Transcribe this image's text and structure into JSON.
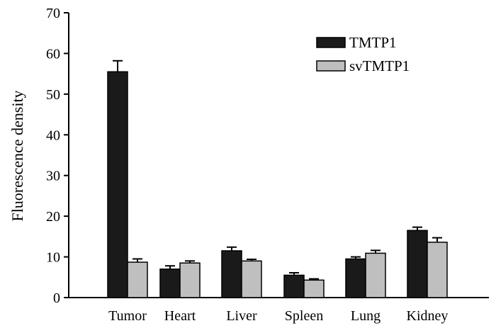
{
  "chart_data": {
    "type": "bar",
    "title": "",
    "xlabel": "",
    "ylabel": "Fluorescence density",
    "ylim": [
      0,
      70
    ],
    "yticks": [
      0,
      10,
      20,
      30,
      40,
      50,
      60,
      70
    ],
    "grid": false,
    "legend_position": "top-right",
    "categories": [
      "Tumor",
      "Heart",
      "Liver",
      "Spleen",
      "Lung",
      "Kidney"
    ],
    "series": [
      {
        "name": "TMTP1",
        "color": "#1a1a1a",
        "values": [
          55.5,
          7.0,
          11.5,
          5.5,
          9.5,
          16.5
        ],
        "errors": [
          2.7,
          0.8,
          0.9,
          0.6,
          0.5,
          0.8
        ]
      },
      {
        "name": "svTMTP1",
        "color": "#bfbfbf",
        "values": [
          8.7,
          8.5,
          9.0,
          4.3,
          10.9,
          13.6
        ],
        "errors": [
          0.8,
          0.5,
          0.4,
          0.3,
          0.7,
          1.1
        ]
      }
    ]
  }
}
